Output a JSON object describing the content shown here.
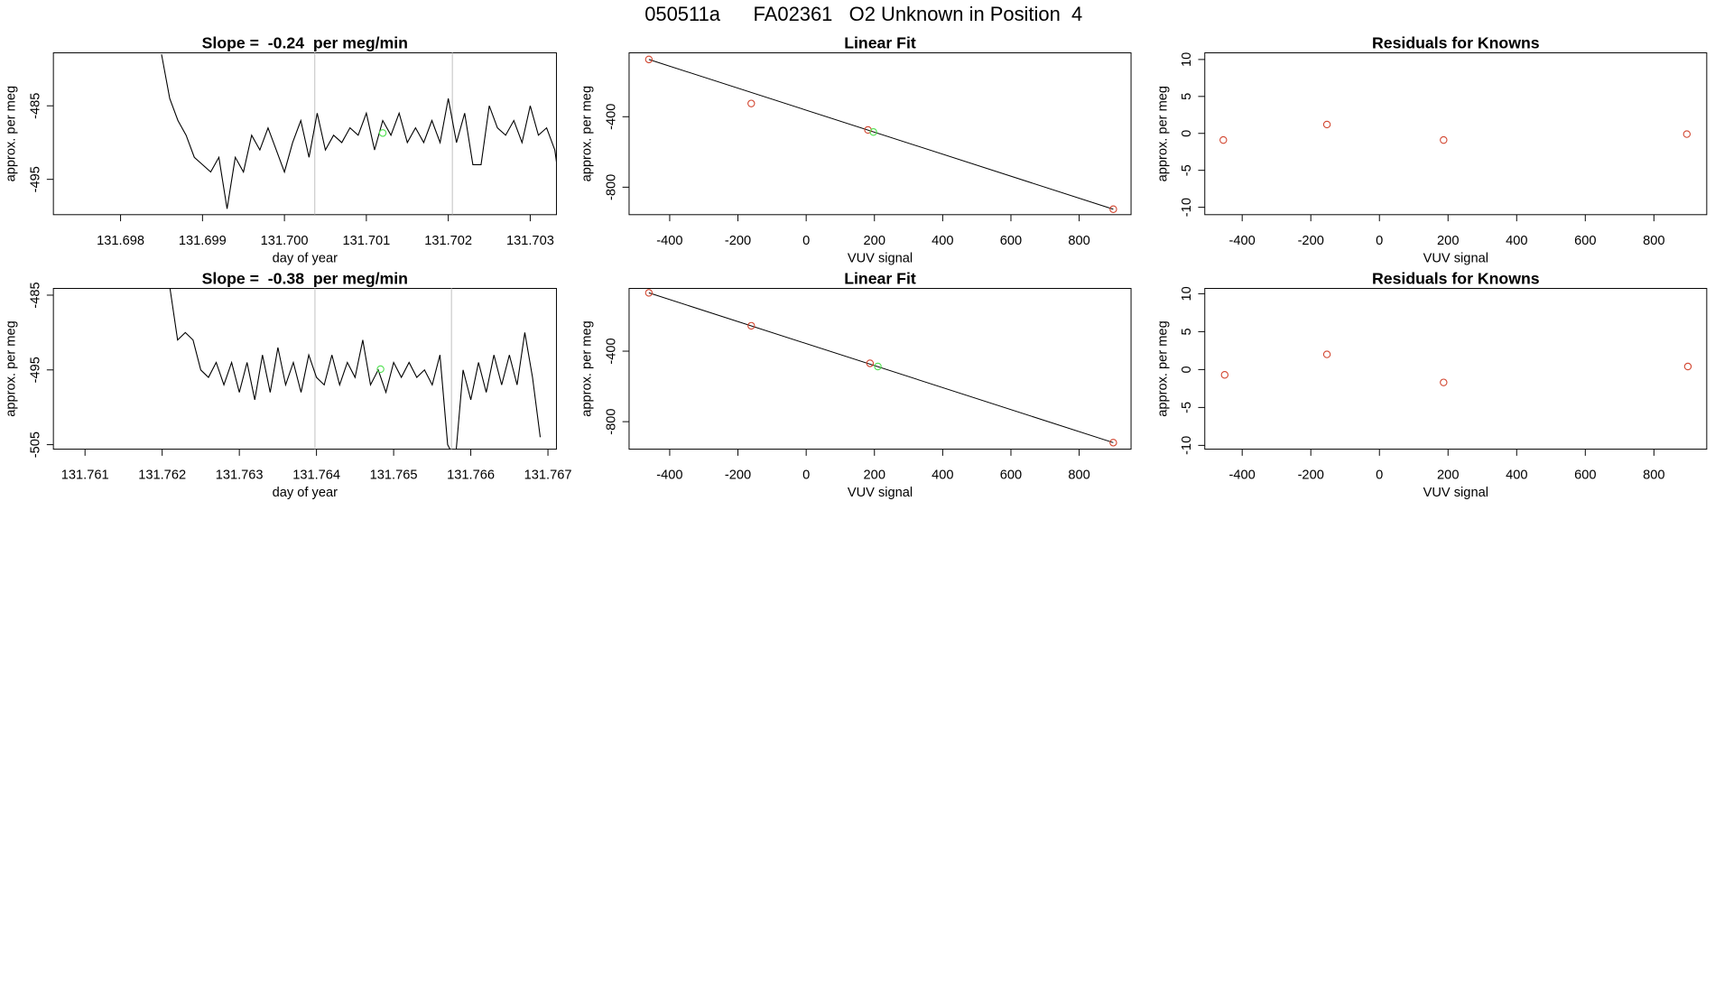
{
  "title": "050511a      FA02361   O2 Unknown in Position  4",
  "chart_data": [
    {
      "type": "line",
      "title": "Slope =  -0.24  per meg/min",
      "xlabel": "day of year",
      "ylabel": "approx. per meg",
      "xlim": [
        131.69718,
        131.70332
      ],
      "ylim": [
        -499.8,
        -477.8
      ],
      "xticks": [
        131.698,
        131.699,
        {
          "value": 131.7,
          "label": "131.700"
        },
        131.701,
        131.702,
        131.703
      ],
      "yticks": [
        -485,
        -495
      ],
      "color": "#000000",
      "x": [
        131.6985,
        131.6986,
        131.6987,
        131.6988,
        131.6989,
        131.699,
        131.6991,
        131.6992,
        131.6993,
        131.6994,
        131.6995,
        131.6996,
        131.6997,
        131.6998,
        131.6999,
        131.7,
        131.7001,
        131.7002,
        131.7003,
        131.7004,
        131.7005,
        131.7006,
        131.7007,
        131.7008,
        131.7009,
        131.701,
        131.7011,
        131.7012,
        131.7013,
        131.7014,
        131.7015,
        131.7016,
        131.7017,
        131.7018,
        131.7019,
        131.702,
        131.7021,
        131.7022,
        131.7023,
        131.7024,
        131.7025,
        131.7026,
        131.7027,
        131.7028,
        131.7029,
        131.703,
        131.7031,
        131.7032,
        131.7033,
        131.7034
      ],
      "values": [
        -478,
        -484,
        -487,
        -489,
        -492,
        -493,
        -494,
        -492,
        -499,
        -492,
        -494,
        -489,
        -491,
        -488,
        -491,
        -494,
        -490,
        -487,
        -492,
        -486,
        -491,
        -489,
        -490,
        -488,
        -489,
        -486,
        -491,
        -487,
        -489,
        -486,
        -490,
        -488,
        -490,
        -487,
        -490,
        -484,
        -490,
        -486,
        -493,
        -493,
        -485,
        -488,
        -489,
        -487,
        -490,
        -485,
        -489,
        -488,
        -491,
        -499
      ],
      "vlines": [
        131.70037,
        131.70205
      ],
      "vline_color": "#cccccc",
      "highlight": {
        "x": 131.7012,
        "y": -488.7,
        "color": "#4fe04f"
      }
    },
    {
      "type": "scatter",
      "title": "Linear Fit",
      "xlabel": "VUV signal",
      "ylabel": "approx. per meg",
      "xlim": [
        -519,
        952
      ],
      "ylim": [
        -956,
        -37.5
      ],
      "xticks": [
        -400,
        -200,
        0,
        200,
        400,
        600,
        800
      ],
      "yticks": [
        -400,
        -800
      ],
      "color": "#d2452f",
      "x": [
        -461,
        -161,
        181,
        900
      ],
      "values": [
        -75,
        -325,
        -475,
        -925
      ],
      "fit_line": {
        "x": [
          -461,
          900
        ],
        "y": [
          -75,
          -925
        ]
      },
      "highlight": {
        "x": 197,
        "y": -487,
        "color": "#4fe04f"
      }
    },
    {
      "type": "scatter",
      "title": "Residuals for Knowns",
      "xlabel": "VUV signal",
      "ylabel": "approx. per meg",
      "xlim": [
        -509,
        954
      ],
      "ylim": [
        -11,
        10.9
      ],
      "xticks": [
        -400,
        -200,
        0,
        200,
        400,
        600,
        800
      ],
      "yticks": [
        10,
        5,
        0,
        -5,
        -10
      ],
      "color": "#d2452f",
      "x": [
        -455,
        -153,
        187,
        896
      ],
      "values": [
        -0.9,
        1.2,
        -0.9,
        -0.1
      ]
    },
    {
      "type": "line",
      "title": "Slope =  -0.38  per meg/min",
      "xlabel": "day of year",
      "ylabel": "approx. per meg",
      "xlim": [
        131.76059,
        131.76711
      ],
      "ylim": [
        -505.6,
        -484.1
      ],
      "xticks": [
        131.761,
        131.762,
        131.763,
        131.764,
        131.765,
        131.766,
        131.767
      ],
      "yticks": [
        -485,
        -495,
        -505
      ],
      "color": "#000000",
      "x": [
        131.7621,
        131.7622,
        131.7623,
        131.7624,
        131.7625,
        131.7626,
        131.7627,
        131.7628,
        131.7629,
        131.763,
        131.7631,
        131.7632,
        131.7633,
        131.7634,
        131.7635,
        131.7636,
        131.7637,
        131.7638,
        131.7639,
        131.764,
        131.7641,
        131.7642,
        131.7643,
        131.7644,
        131.7645,
        131.7646,
        131.7647,
        131.7648,
        131.7649,
        131.765,
        131.7651,
        131.7652,
        131.7653,
        131.7654,
        131.7655,
        131.7656,
        131.7657,
        131.7658,
        131.7659,
        131.766,
        131.7661,
        131.7662,
        131.7663,
        131.7664,
        131.7665,
        131.7666,
        131.7667,
        131.7668,
        131.7669
      ],
      "values": [
        -484,
        -491,
        -490,
        -491,
        -495,
        -496,
        -494,
        -497,
        -494,
        -498,
        -494,
        -499,
        -493,
        -498,
        -492,
        -497,
        -494,
        -498,
        -493,
        -496,
        -497,
        -493,
        -497,
        -494,
        -496,
        -491,
        -497,
        -495,
        -498,
        -494,
        -496,
        -494,
        -496,
        -495,
        -497,
        -493,
        -505,
        -507,
        -495,
        -499,
        -494,
        -498,
        -493,
        -497,
        -493,
        -497,
        -490,
        -496,
        -504
      ],
      "vlines": [
        131.76398,
        131.76575
      ],
      "vline_color": "#cccccc",
      "highlight": {
        "x": 131.76483,
        "y": -494.9,
        "color": "#4fe04f"
      }
    },
    {
      "type": "scatter",
      "title": "Linear Fit",
      "xlabel": "VUV signal",
      "ylabel": "approx. per meg",
      "xlim": [
        -519,
        952
      ],
      "ylim": [
        -956,
        -44
      ],
      "xticks": [
        -400,
        -200,
        0,
        200,
        400,
        600,
        800
      ],
      "yticks": [
        -400,
        -800
      ],
      "color": "#d2452f",
      "x": [
        -461,
        -161,
        187,
        900
      ],
      "values": [
        -69,
        -256,
        -469,
        -919
      ],
      "fit_line": {
        "x": [
          -461,
          900
        ],
        "y": [
          -69,
          -919
        ]
      },
      "highlight": {
        "x": 210,
        "y": -487,
        "color": "#4fe04f"
      }
    },
    {
      "type": "scatter",
      "title": "Residuals for Knowns",
      "xlabel": "VUV signal",
      "ylabel": "approx. per meg",
      "xlim": [
        -509,
        954
      ],
      "ylim": [
        -10.5,
        10.7
      ],
      "xticks": [
        -400,
        -200,
        0,
        200,
        400,
        600,
        800
      ],
      "yticks": [
        10,
        5,
        0,
        -5,
        -10
      ],
      "color": "#d2452f",
      "x": [
        -451,
        -153,
        187,
        899
      ],
      "values": [
        -0.7,
        2.0,
        -1.7,
        0.4
      ]
    }
  ]
}
